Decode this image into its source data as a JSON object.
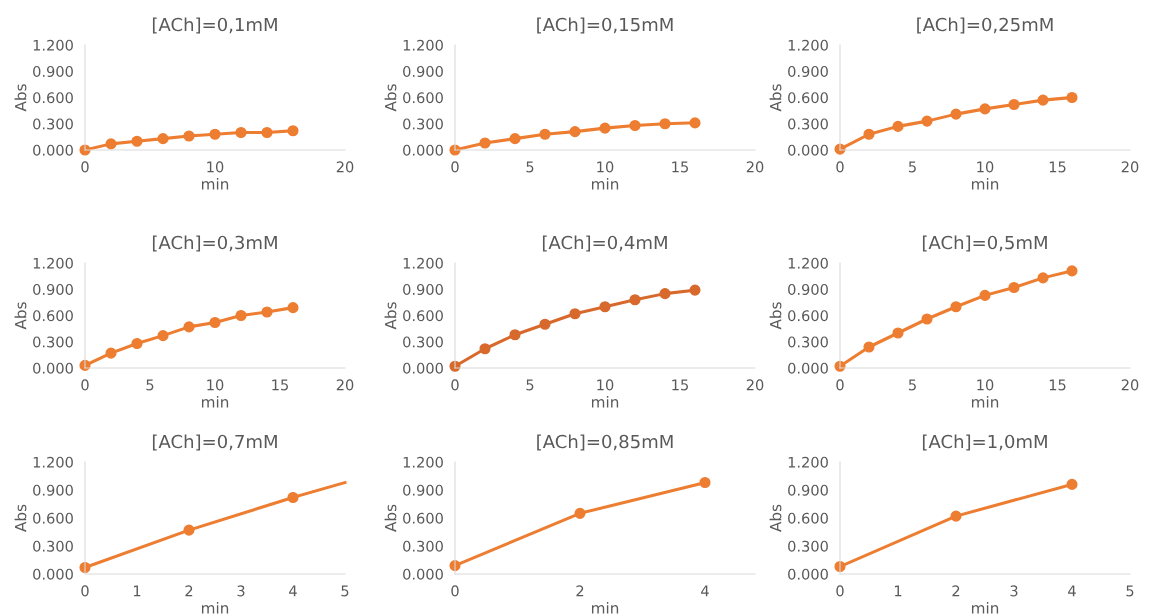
{
  "chart_data": [
    {
      "type": "line",
      "title": "[ACh]=0,1mM",
      "xlabel": "min",
      "ylabel": "Abs",
      "x": [
        0,
        2,
        4,
        6,
        8,
        10,
        12,
        14,
        16
      ],
      "marker": "circle",
      "xlim": [
        0,
        20
      ],
      "xticks": [
        0,
        10,
        20
      ],
      "ylim": [
        0,
        1.2
      ],
      "yticks": [
        {
          "value": 0,
          "label": "0.000"
        },
        {
          "value": 0.3,
          "label": "0.300"
        },
        {
          "value": 0.6,
          "label": "0.600"
        },
        {
          "value": 0.9,
          "label": "0.900"
        },
        {
          "value": 1.2,
          "label": "1.200"
        }
      ],
      "series": [
        {
          "color": "#ed7d31",
          "values": [
            0.0,
            0.07,
            0.1,
            0.13,
            0.16,
            0.18,
            0.2,
            0.2,
            0.22
          ]
        }
      ]
    },
    {
      "type": "line",
      "title": "[ACh]=0,15mM",
      "xlabel": "min",
      "ylabel": "Abs",
      "x": [
        0,
        2,
        4,
        6,
        8,
        10,
        12,
        14,
        16
      ],
      "marker": "circle",
      "xlim": [
        0,
        20
      ],
      "xticks": [
        0,
        5,
        10,
        15,
        20
      ],
      "ylim": [
        0,
        1.2
      ],
      "yticks": [
        {
          "value": 0,
          "label": "0.000"
        },
        {
          "value": 0.3,
          "label": "0.300"
        },
        {
          "value": 0.6,
          "label": "0.600"
        },
        {
          "value": 0.9,
          "label": "0.900"
        },
        {
          "value": 1.2,
          "label": "1.200"
        }
      ],
      "series": [
        {
          "color": "#ed7d31",
          "values": [
            0.0,
            0.08,
            0.13,
            0.18,
            0.21,
            0.25,
            0.28,
            0.3,
            0.31
          ]
        }
      ]
    },
    {
      "type": "line",
      "title": "[ACh]=0,25mM",
      "xlabel": "min",
      "ylabel": "Abs",
      "x": [
        0,
        2,
        4,
        6,
        8,
        10,
        12,
        14,
        16
      ],
      "marker": "circle",
      "xlim": [
        0,
        20
      ],
      "xticks": [
        0,
        5,
        10,
        15,
        20
      ],
      "ylim": [
        0,
        1.2
      ],
      "yticks": [
        {
          "value": 0,
          "label": "0.000"
        },
        {
          "value": 0.3,
          "label": "0.300"
        },
        {
          "value": 0.6,
          "label": "0.600"
        },
        {
          "value": 0.9,
          "label": "0.900"
        },
        {
          "value": 1.2,
          "label": "1.200"
        }
      ],
      "series": [
        {
          "color": "#ed7d31",
          "values": [
            0.01,
            0.18,
            0.27,
            0.33,
            0.41,
            0.47,
            0.52,
            0.57,
            0.6
          ]
        }
      ]
    },
    {
      "type": "line",
      "title": "[ACh]=0,3mM",
      "xlabel": "min",
      "ylabel": "Abs",
      "x": [
        0,
        2,
        4,
        6,
        8,
        10,
        12,
        14,
        16
      ],
      "marker": "circle",
      "xlim": [
        0,
        20
      ],
      "xticks": [
        0,
        5,
        10,
        15,
        20
      ],
      "ylim": [
        0,
        1.2
      ],
      "yticks": [
        {
          "value": 0,
          "label": "0.000"
        },
        {
          "value": 0.3,
          "label": "0.300"
        },
        {
          "value": 0.6,
          "label": "0.600"
        },
        {
          "value": 0.9,
          "label": "0.900"
        },
        {
          "value": 1.2,
          "label": "1.200"
        }
      ],
      "series": [
        {
          "color": "#ed7d31",
          "values": [
            0.03,
            0.17,
            0.28,
            0.37,
            0.47,
            0.52,
            0.6,
            0.64,
            0.69
          ]
        }
      ]
    },
    {
      "type": "line",
      "title": "[ACh]=0,4mM",
      "xlabel": "min",
      "ylabel": "Abs",
      "x": [
        0,
        2,
        4,
        6,
        8,
        10,
        12,
        14,
        16
      ],
      "marker": "circle",
      "xlim": [
        0,
        20
      ],
      "xticks": [
        0,
        5,
        10,
        15,
        20
      ],
      "ylim": [
        0,
        1.2
      ],
      "yticks": [
        {
          "value": 0,
          "label": "0.000"
        },
        {
          "value": 0.3,
          "label": "0.300"
        },
        {
          "value": 0.6,
          "label": "0.600"
        },
        {
          "value": 0.9,
          "label": "0.900"
        },
        {
          "value": 1.2,
          "label": "1.200"
        }
      ],
      "series": [
        {
          "color": "#d8692c",
          "values": [
            0.02,
            0.22,
            0.38,
            0.5,
            0.62,
            0.7,
            0.78,
            0.85,
            0.89
          ]
        }
      ]
    },
    {
      "type": "line",
      "title": "[ACh]=0,5mM",
      "xlabel": "min",
      "ylabel": "Abs",
      "x": [
        0,
        2,
        4,
        6,
        8,
        10,
        12,
        14,
        16
      ],
      "marker": "circle",
      "xlim": [
        0,
        20
      ],
      "xticks": [
        0,
        5,
        10,
        15,
        20
      ],
      "ylim": [
        0,
        1.2
      ],
      "yticks": [
        {
          "value": 0,
          "label": "0.000"
        },
        {
          "value": 0.3,
          "label": "0.300"
        },
        {
          "value": 0.6,
          "label": "0.600"
        },
        {
          "value": 0.9,
          "label": "0.900"
        },
        {
          "value": 1.2,
          "label": "1.200"
        }
      ],
      "series": [
        {
          "color": "#ed7d31",
          "values": [
            0.02,
            0.24,
            0.4,
            0.56,
            0.7,
            0.83,
            0.92,
            1.03,
            1.11
          ]
        }
      ]
    },
    {
      "type": "line",
      "title": "[ACh]=0,7mM",
      "xlabel": "min",
      "ylabel": "Abs",
      "x": [
        0,
        2,
        4
      ],
      "marker": "circle",
      "xlim": [
        0,
        5
      ],
      "xticks": [
        0,
        1,
        2,
        3,
        4,
        5
      ],
      "ylim": [
        0,
        1.2
      ],
      "yticks": [
        {
          "value": 0,
          "label": "0.000"
        },
        {
          "value": 0.3,
          "label": "0.300"
        },
        {
          "value": 0.6,
          "label": "0.600"
        },
        {
          "value": 0.9,
          "label": "0.900"
        },
        {
          "value": 1.2,
          "label": "1.200"
        }
      ],
      "series": [
        {
          "color": "#ed7d31",
          "values": [
            0.07,
            0.47,
            0.82
          ]
        },
        {
          "color": "#ed7d31",
          "x": [
            4,
            5
          ],
          "values": [
            0.82,
            0.98
          ],
          "marker": "none"
        }
      ]
    },
    {
      "type": "line",
      "title": "[ACh]=0,85mM",
      "xlabel": "min",
      "ylabel": "Abs",
      "x": [
        0,
        2,
        4
      ],
      "marker": "circle",
      "xlim": [
        0,
        4.8
      ],
      "xticks": [
        0,
        2,
        4
      ],
      "ylim": [
        0,
        1.2
      ],
      "yticks": [
        {
          "value": 0,
          "label": "0.000"
        },
        {
          "value": 0.3,
          "label": "0.300"
        },
        {
          "value": 0.6,
          "label": "0.600"
        },
        {
          "value": 0.9,
          "label": "0.900"
        },
        {
          "value": 1.2,
          "label": "1.200"
        }
      ],
      "series": [
        {
          "color": "#ed7d31",
          "values": [
            0.09,
            0.65,
            0.98
          ]
        }
      ]
    },
    {
      "type": "line",
      "title": "[ACh]=1,0mM",
      "xlabel": "min",
      "ylabel": "Abs",
      "x": [
        0,
        2,
        4
      ],
      "marker": "circle",
      "xlim": [
        0,
        5
      ],
      "xticks": [
        0,
        1,
        2,
        3,
        4,
        5
      ],
      "ylim": [
        0,
        1.2
      ],
      "yticks": [
        {
          "value": 0,
          "label": "0.000"
        },
        {
          "value": 0.3,
          "label": "0.300"
        },
        {
          "value": 0.6,
          "label": "0.600"
        },
        {
          "value": 0.9,
          "label": "0.900"
        },
        {
          "value": 1.2,
          "label": "1.200"
        }
      ],
      "series": [
        {
          "color": "#ed7d31",
          "values": [
            0.08,
            0.62,
            0.96
          ]
        }
      ]
    }
  ]
}
